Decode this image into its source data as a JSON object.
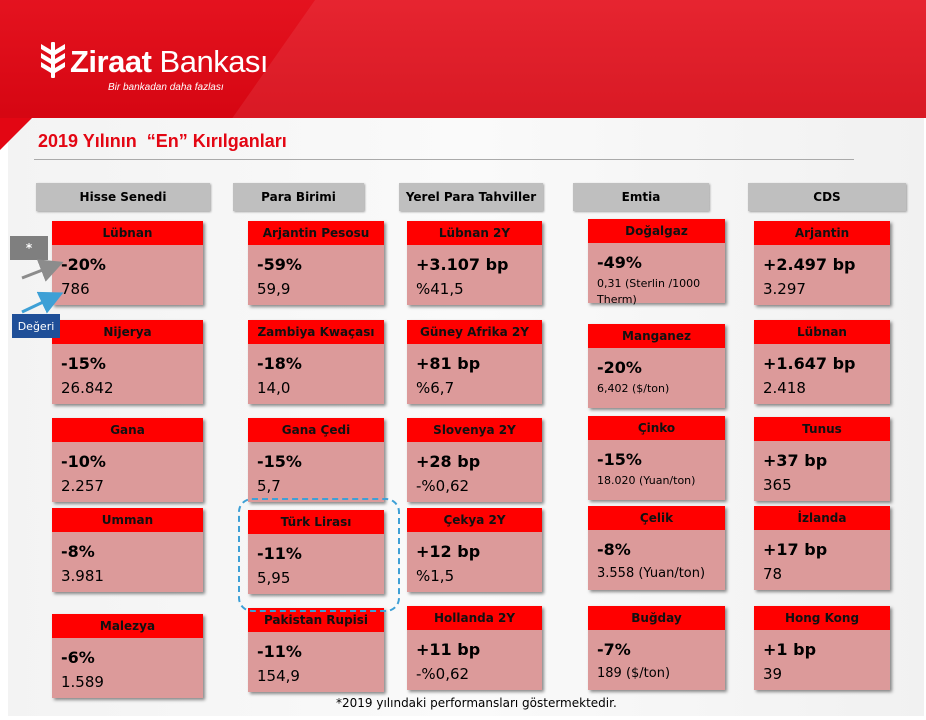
{
  "brand": {
    "name_bold": "Ziraat",
    "name_rest": " Bankası",
    "tagline": "Bir bankadan daha fazlası",
    "color": "#e30613"
  },
  "title": "2019 Yılının  “En” Kırılganları",
  "legend": {
    "star": "*",
    "value": "Değeri"
  },
  "footnote": "*2019  yılındaki performansları göstermektedir.",
  "columns": [
    {
      "header": "Hisse Senedi",
      "items": [
        {
          "name": "Lübnan",
          "change": "-20%",
          "value": "786"
        },
        {
          "name": "Nijerya",
          "change": "-15%",
          "value": "26.842"
        },
        {
          "name": "Gana",
          "change": "-10%",
          "value": "2.257"
        },
        {
          "name": "Umman",
          "change": "-8%",
          "value": "3.981"
        },
        {
          "name": "Malezya",
          "change": "-6%",
          "value": "1.589"
        }
      ]
    },
    {
      "header": "Para Birimi",
      "items": [
        {
          "name": "Arjantin Pesosu",
          "change": "-59%",
          "value": "59,9"
        },
        {
          "name": "Zambiya Kwaçası",
          "change": "-18%",
          "value": "14,0"
        },
        {
          "name": "Gana Çedi",
          "change": "-15%",
          "value": "5,7"
        },
        {
          "name": "Türk Lirası",
          "change": "-11%",
          "value": "5,95"
        },
        {
          "name": "Pakistan Rupisi",
          "change": "-11%",
          "value": "154,9"
        }
      ]
    },
    {
      "header": "Yerel Para Tahviller",
      "items": [
        {
          "name": "Lübnan 2Y",
          "change": "+3.107 bp",
          "value": "%41,5"
        },
        {
          "name": "Güney Afrika 2Y",
          "change": "+81 bp",
          "value": "%6,7"
        },
        {
          "name": "Slovenya 2Y",
          "change": "+28 bp",
          "value": "-%0,62"
        },
        {
          "name": "Çekya 2Y",
          "change": "+12 bp",
          "value": "%1,5"
        },
        {
          "name": "Hollanda 2Y",
          "change": "+11 bp",
          "value": "-%0,62"
        }
      ]
    },
    {
      "header": "Emtia",
      "items": [
        {
          "name": "Doğalgaz",
          "change": "-49%",
          "value": "0,31 (Sterlin /1000 Therm)"
        },
        {
          "name": "Manganez",
          "change": "-20%",
          "value": "6,402 ($/ton)"
        },
        {
          "name": "Çinko",
          "change": "-15%",
          "value": "18.020 (Yuan/ton)"
        },
        {
          "name": "Çelik",
          "change": "-8%",
          "value": "3.558 (Yuan/ton)"
        },
        {
          "name": "Buğday",
          "change": "-7%",
          "value": "189 ($/ton)"
        }
      ]
    },
    {
      "header": "CDS",
      "items": [
        {
          "name": "Arjantin",
          "change": "+2.497 bp",
          "value": "3.297"
        },
        {
          "name": "Lübnan",
          "change": "+1.647 bp",
          "value": "2.418"
        },
        {
          "name": "Tunus",
          "change": "+37 bp",
          "value": "365"
        },
        {
          "name": "İzlanda",
          "change": "+17 bp",
          "value": "78"
        },
        {
          "name": "Hong Kong",
          "change": "+1 bp",
          "value": "39"
        }
      ]
    }
  ]
}
